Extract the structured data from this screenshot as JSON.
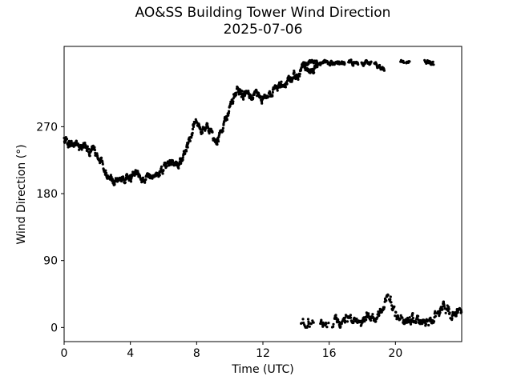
{
  "figure": {
    "title": "AO&SS Building Tower Wind Direction",
    "subtitle": "2025-07-06"
  },
  "chart_data": {
    "type": "scatter",
    "title": "AO&SS Building Tower Wind Direction",
    "subtitle": "2025-07-06",
    "xlabel": "Time (UTC)",
    "ylabel": "Wind Direction (°)",
    "xlim": [
      0,
      24
    ],
    "ylim": [
      -19,
      378
    ],
    "xticks": [
      0,
      4,
      8,
      12,
      16,
      20
    ],
    "yticks": [
      0,
      90,
      180,
      270
    ],
    "grid": false,
    "legend": "none",
    "marker": {
      "shape": "circle",
      "radius": 1.6,
      "color": "#000000"
    },
    "sample_step_hours": 0.0167,
    "series": [
      {
        "name": "wind-direction-main-trace",
        "description": "southwesterly veering to northwesterly then north",
        "noise_deg": 7,
        "dropout": 0.04,
        "clamp": [
          0,
          360
        ],
        "gaps": [],
        "backbone": [
          [
            0,
            256
          ],
          [
            0.25,
            247
          ],
          [
            0.5,
            244
          ],
          [
            0.75,
            247
          ],
          [
            1,
            243
          ],
          [
            1.25,
            246
          ],
          [
            1.5,
            239
          ],
          [
            1.75,
            241
          ],
          [
            2,
            234
          ],
          [
            2.3,
            222
          ],
          [
            2.6,
            208
          ],
          [
            2.9,
            198
          ],
          [
            3.2,
            201
          ],
          [
            3.5,
            196
          ],
          [
            3.8,
            199
          ],
          [
            4.1,
            202
          ],
          [
            4.35,
            210
          ],
          [
            4.6,
            203
          ],
          [
            4.85,
            198
          ],
          [
            5.1,
            203
          ],
          [
            5.35,
            197
          ],
          [
            5.6,
            203
          ],
          [
            5.85,
            210
          ],
          [
            6.1,
            218
          ],
          [
            6.35,
            224
          ],
          [
            6.6,
            219
          ],
          [
            6.85,
            217
          ],
          [
            7.1,
            226
          ],
          [
            7.35,
            242
          ],
          [
            7.6,
            254
          ],
          [
            7.8,
            268
          ],
          [
            7.95,
            281
          ],
          [
            8.1,
            272
          ],
          [
            8.35,
            261
          ],
          [
            8.6,
            272
          ],
          [
            8.8,
            267
          ],
          [
            9,
            251
          ],
          [
            9.2,
            248
          ],
          [
            9.45,
            261
          ],
          [
            9.7,
            279
          ],
          [
            9.95,
            291
          ],
          [
            10.2,
            307
          ],
          [
            10.45,
            318
          ],
          [
            10.7,
            313
          ],
          [
            11,
            318
          ],
          [
            11.3,
            312
          ],
          [
            11.6,
            316
          ],
          [
            11.9,
            306
          ],
          [
            12.2,
            312
          ],
          [
            12.5,
            315
          ],
          [
            12.8,
            322
          ],
          [
            13.1,
            325
          ],
          [
            13.4,
            330
          ],
          [
            13.7,
            333
          ],
          [
            14,
            338
          ],
          [
            14.2,
            344
          ],
          [
            14.45,
            350
          ],
          [
            14.8,
            345
          ],
          [
            15.1,
            347
          ],
          [
            15.3,
            349
          ]
        ]
      },
      {
        "name": "wind-direction-north-band-high",
        "description": "near 360 degrees (north) band",
        "noise_deg": 4,
        "dropout": 0.15,
        "clamp": [
          335,
          360
        ],
        "gaps": [
          [
            16.95,
            17.15
          ],
          [
            17.75,
            17.95
          ],
          [
            18.55,
            18.72
          ],
          [
            19.33,
            20.3
          ],
          [
            20.52,
            20.64
          ],
          [
            20.86,
            21.75
          ],
          [
            22.3,
            24.1
          ]
        ],
        "backbone": [
          [
            14.45,
            354
          ],
          [
            14.9,
            356
          ],
          [
            15.6,
            355
          ],
          [
            16.5,
            356
          ],
          [
            17.4,
            355
          ],
          [
            18.3,
            356
          ],
          [
            18.9,
            353
          ],
          [
            19.15,
            350
          ],
          [
            19.33,
            349
          ],
          [
            20.3,
            357
          ],
          [
            20.85,
            356
          ],
          [
            21.75,
            356
          ],
          [
            22.3,
            355
          ]
        ]
      },
      {
        "name": "wind-direction-north-band-low",
        "description": "near 0 degrees (north) band",
        "noise_deg": 8,
        "dropout": 0.22,
        "dropout_zones": [
          [
            14.3,
            16.3,
            0.35
          ]
        ],
        "clamp": [
          0,
          60
        ],
        "gaps": [
          [
            15.15,
            15.45
          ],
          [
            16.0,
            16.18
          ]
        ],
        "backbone": [
          [
            14.3,
            5
          ],
          [
            14.7,
            4
          ],
          [
            15,
            6
          ],
          [
            15.5,
            5
          ],
          [
            15.8,
            4
          ],
          [
            16.1,
            4
          ],
          [
            16.45,
            15
          ],
          [
            16.7,
            5
          ],
          [
            17,
            8
          ],
          [
            17.3,
            10
          ],
          [
            17.6,
            8
          ],
          [
            18,
            8
          ],
          [
            18.45,
            17
          ],
          [
            18.8,
            6
          ],
          [
            19.1,
            22
          ],
          [
            19.35,
            30
          ],
          [
            19.55,
            40
          ],
          [
            19.75,
            32
          ],
          [
            20,
            20
          ],
          [
            20.3,
            12
          ],
          [
            20.6,
            7
          ],
          [
            20.9,
            10
          ],
          [
            21.2,
            10
          ],
          [
            21.5,
            7
          ],
          [
            21.8,
            8
          ],
          [
            22.1,
            7
          ],
          [
            22.35,
            14
          ],
          [
            22.7,
            24
          ],
          [
            23,
            28
          ],
          [
            23.3,
            19
          ],
          [
            23.6,
            14
          ],
          [
            23.8,
            21
          ],
          [
            24,
            18
          ]
        ]
      }
    ]
  },
  "colors": {
    "background": "#ffffff",
    "foreground": "#000000",
    "marker": "#000000"
  }
}
